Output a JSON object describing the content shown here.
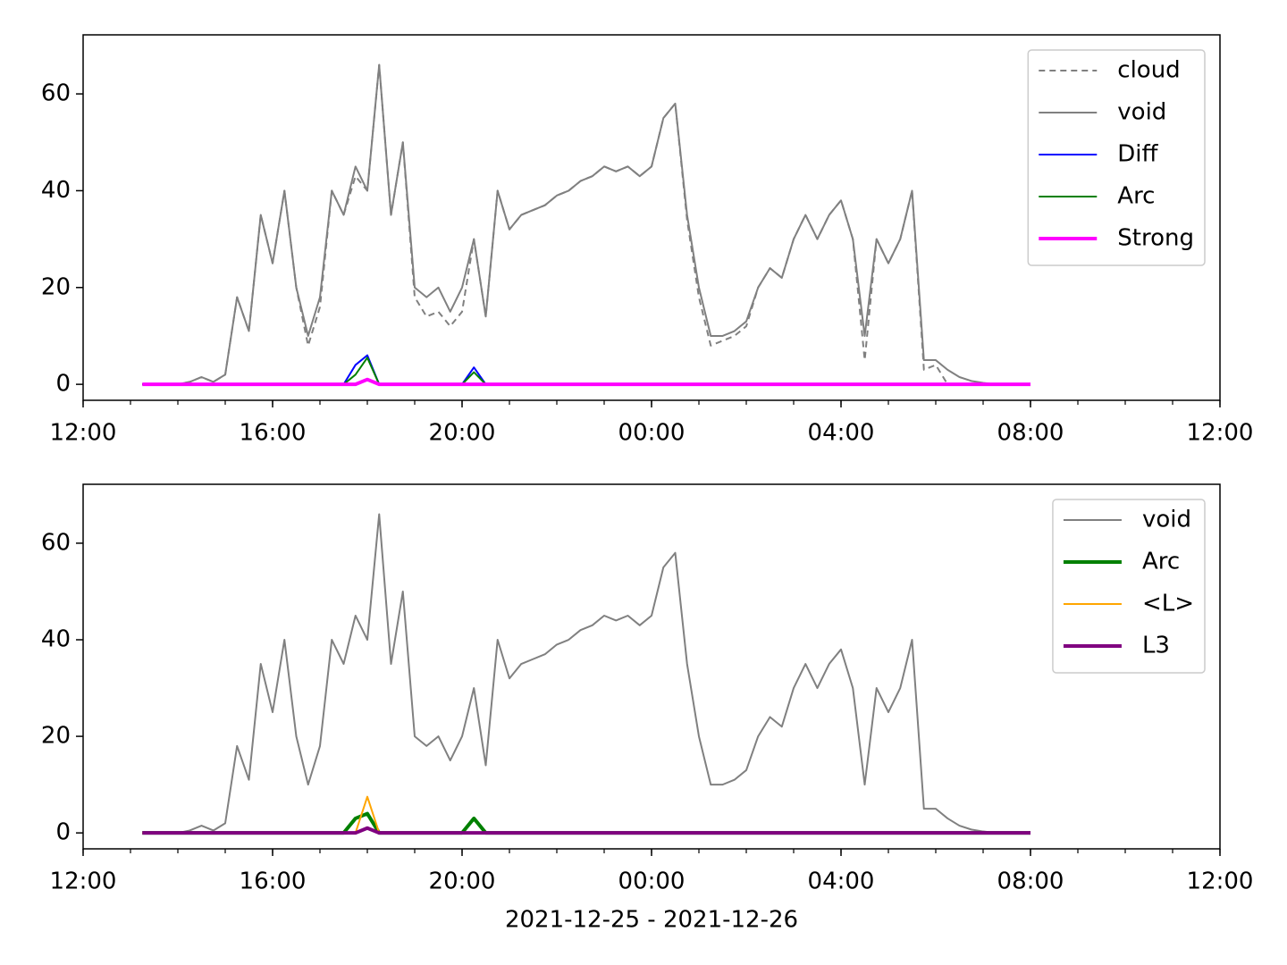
{
  "chart_data": [
    {
      "type": "line",
      "legend": "upper right",
      "xlim": [
        12,
        36
      ],
      "ylim": [
        -3.3,
        72.2
      ],
      "xticks": [
        {
          "value": 12,
          "label": "12:00"
        },
        {
          "value": 16,
          "label": "16:00"
        },
        {
          "value": 20,
          "label": "20:00"
        },
        {
          "value": 24,
          "label": "00:00"
        },
        {
          "value": 28,
          "label": "04:00"
        },
        {
          "value": 32,
          "label": "08:00"
        },
        {
          "value": 36,
          "label": "12:00"
        }
      ],
      "yticks": [
        0,
        20,
        40,
        60
      ],
      "x": [
        13.25,
        13.5,
        13.75,
        14,
        14.25,
        14.5,
        14.75,
        15,
        15.25,
        15.5,
        15.75,
        16,
        16.25,
        16.5,
        16.75,
        17,
        17.25,
        17.5,
        17.75,
        18,
        18.25,
        18.5,
        18.75,
        19,
        19.25,
        19.5,
        19.75,
        20,
        20.25,
        20.5,
        20.75,
        21,
        21.25,
        21.5,
        21.75,
        22,
        22.25,
        22.5,
        22.75,
        23,
        23.25,
        23.5,
        23.75,
        24,
        24.25,
        24.5,
        24.75,
        25,
        25.25,
        25.5,
        25.75,
        26,
        26.25,
        26.5,
        26.75,
        27,
        27.25,
        27.5,
        27.75,
        28,
        28.25,
        28.5,
        28.75,
        29,
        29.25,
        29.5,
        29.75,
        30,
        30.25,
        30.5,
        30.75,
        31,
        31.25,
        31.5,
        31.75,
        32
      ],
      "series": [
        {
          "name": "cloud",
          "color": "#808080",
          "style": "dashed",
          "values": [
            0,
            0,
            0,
            0,
            0.5,
            1.5,
            0.5,
            2,
            18,
            11,
            35,
            25,
            40,
            20,
            8,
            16,
            40,
            35,
            43,
            40,
            66,
            35,
            50,
            18,
            14,
            15,
            12,
            15,
            30,
            14,
            40,
            32,
            35,
            36,
            37,
            39,
            40,
            42,
            43,
            45,
            44,
            45,
            43,
            45,
            55,
            58,
            34,
            18,
            8,
            9,
            10,
            12,
            20,
            24,
            22,
            30,
            35,
            30,
            35,
            38,
            30,
            5,
            30,
            25,
            30,
            40,
            3,
            4,
            0,
            0,
            0,
            0,
            0,
            0,
            0,
            0
          ]
        },
        {
          "name": "void",
          "color": "#808080",
          "style": "solid",
          "values": [
            0,
            0,
            0,
            0,
            0.5,
            1.5,
            0.5,
            2,
            18,
            11,
            35,
            25,
            40,
            20,
            10,
            18,
            40,
            35,
            45,
            40,
            66,
            35,
            50,
            20,
            18,
            20,
            15,
            20,
            30,
            14,
            40,
            32,
            35,
            36,
            37,
            39,
            40,
            42,
            43,
            45,
            44,
            45,
            43,
            45,
            55,
            58,
            35,
            20,
            10,
            10,
            11,
            13,
            20,
            24,
            22,
            30,
            35,
            30,
            35,
            38,
            30,
            10,
            30,
            25,
            30,
            40,
            5,
            5,
            3,
            1.5,
            0.7,
            0.3,
            0,
            0,
            0,
            0
          ]
        },
        {
          "name": "Diff",
          "color": "#0000ff",
          "style": "solid",
          "values": [
            0,
            0,
            0,
            0,
            0,
            0,
            0,
            0,
            0,
            0,
            0,
            0,
            0,
            0,
            0,
            0,
            0,
            0,
            4,
            6,
            0,
            0,
            0,
            0,
            0,
            0,
            0,
            0,
            3.5,
            0,
            0,
            0,
            0,
            0,
            0,
            0,
            0,
            0,
            0,
            0,
            0,
            0,
            0,
            0,
            0,
            0,
            0,
            0,
            0,
            0,
            0,
            0,
            0,
            0,
            0,
            0,
            0,
            0,
            0,
            0,
            0,
            0,
            0,
            0,
            0,
            0,
            0,
            0,
            0,
            0,
            0,
            0,
            0,
            0,
            0,
            0
          ]
        },
        {
          "name": "Arc",
          "color": "#008000",
          "style": "solid",
          "values": [
            0,
            0,
            0,
            0,
            0,
            0,
            0,
            0,
            0,
            0,
            0,
            0,
            0,
            0,
            0,
            0,
            0,
            0,
            2,
            5.5,
            0,
            0,
            0,
            0,
            0,
            0,
            0,
            0,
            2.5,
            0,
            0,
            0,
            0,
            0,
            0,
            0,
            0,
            0,
            0,
            0,
            0,
            0,
            0,
            0,
            0,
            0,
            0,
            0,
            0,
            0,
            0,
            0,
            0,
            0,
            0,
            0,
            0,
            0,
            0,
            0,
            0,
            0,
            0,
            0,
            0,
            0,
            0,
            0,
            0,
            0,
            0,
            0,
            0,
            0,
            0,
            0
          ]
        },
        {
          "name": "Strong",
          "color": "#ff00ff",
          "style": "thick",
          "values": [
            0,
            0,
            0,
            0,
            0,
            0,
            0,
            0,
            0,
            0,
            0,
            0,
            0,
            0,
            0,
            0,
            0,
            0,
            0,
            1,
            0,
            0,
            0,
            0,
            0,
            0,
            0,
            0,
            0,
            0,
            0,
            0,
            0,
            0,
            0,
            0,
            0,
            0,
            0,
            0,
            0,
            0,
            0,
            0,
            0,
            0,
            0,
            0,
            0,
            0,
            0,
            0,
            0,
            0,
            0,
            0,
            0,
            0,
            0,
            0,
            0,
            0,
            0,
            0,
            0,
            0,
            0,
            0,
            0,
            0,
            0,
            0,
            0,
            0,
            0,
            0
          ]
        }
      ]
    },
    {
      "type": "line",
      "legend": "upper right",
      "xlabel": "2021-12-25 - 2021-12-26",
      "xlim": [
        12,
        36
      ],
      "ylim": [
        -3.3,
        72.2
      ],
      "xticks": [
        {
          "value": 12,
          "label": "12:00"
        },
        {
          "value": 16,
          "label": "16:00"
        },
        {
          "value": 20,
          "label": "20:00"
        },
        {
          "value": 24,
          "label": "00:00"
        },
        {
          "value": 28,
          "label": "04:00"
        },
        {
          "value": 32,
          "label": "08:00"
        },
        {
          "value": 36,
          "label": "12:00"
        }
      ],
      "yticks": [
        0,
        20,
        40,
        60
      ],
      "x": [
        13.25,
        13.5,
        13.75,
        14,
        14.25,
        14.5,
        14.75,
        15,
        15.25,
        15.5,
        15.75,
        16,
        16.25,
        16.5,
        16.75,
        17,
        17.25,
        17.5,
        17.75,
        18,
        18.25,
        18.5,
        18.75,
        19,
        19.25,
        19.5,
        19.75,
        20,
        20.25,
        20.5,
        20.75,
        21,
        21.25,
        21.5,
        21.75,
        22,
        22.25,
        22.5,
        22.75,
        23,
        23.25,
        23.5,
        23.75,
        24,
        24.25,
        24.5,
        24.75,
        25,
        25.25,
        25.5,
        25.75,
        26,
        26.25,
        26.5,
        26.75,
        27,
        27.25,
        27.5,
        27.75,
        28,
        28.25,
        28.5,
        28.75,
        29,
        29.25,
        29.5,
        29.75,
        30,
        30.25,
        30.5,
        30.75,
        31,
        31.25,
        31.5,
        31.75,
        32
      ],
      "series": [
        {
          "name": "void",
          "color": "#808080",
          "style": "solid",
          "values": [
            0,
            0,
            0,
            0,
            0.5,
            1.5,
            0.5,
            2,
            18,
            11,
            35,
            25,
            40,
            20,
            10,
            18,
            40,
            35,
            45,
            40,
            66,
            35,
            50,
            20,
            18,
            20,
            15,
            20,
            30,
            14,
            40,
            32,
            35,
            36,
            37,
            39,
            40,
            42,
            43,
            45,
            44,
            45,
            43,
            45,
            55,
            58,
            35,
            20,
            10,
            10,
            11,
            13,
            20,
            24,
            22,
            30,
            35,
            30,
            35,
            38,
            30,
            10,
            30,
            25,
            30,
            40,
            5,
            5,
            3,
            1.5,
            0.7,
            0.3,
            0,
            0,
            0,
            0
          ]
        },
        {
          "name": "Arc",
          "color": "#008000",
          "style": "thick",
          "values": [
            0,
            0,
            0,
            0,
            0,
            0,
            0,
            0,
            0,
            0,
            0,
            0,
            0,
            0,
            0,
            0,
            0,
            0,
            3,
            4,
            0,
            0,
            0,
            0,
            0,
            0,
            0,
            0,
            3,
            0,
            0,
            0,
            0,
            0,
            0,
            0,
            0,
            0,
            0,
            0,
            0,
            0,
            0,
            0,
            0,
            0,
            0,
            0,
            0,
            0,
            0,
            0,
            0,
            0,
            0,
            0,
            0,
            0,
            0,
            0,
            0,
            0,
            0,
            0,
            0,
            0,
            0,
            0,
            0,
            0,
            0,
            0,
            0,
            0,
            0,
            0
          ]
        },
        {
          "name": "<L>",
          "color": "#ffa500",
          "style": "solid",
          "values": [
            0,
            0,
            0,
            0,
            0,
            0,
            0,
            0,
            0,
            0,
            0,
            0,
            0,
            0,
            0,
            0,
            0,
            0,
            0,
            7.5,
            0,
            0,
            0,
            0,
            0,
            0,
            0,
            0,
            0,
            0,
            0,
            0,
            0,
            0,
            0,
            0,
            0,
            0,
            0,
            0,
            0,
            0,
            0,
            0,
            0,
            0,
            0,
            0,
            0,
            0,
            0,
            0,
            0,
            0,
            0,
            0,
            0,
            0,
            0,
            0,
            0,
            0,
            0,
            0,
            0,
            0,
            0,
            0,
            0,
            0,
            0,
            0,
            0,
            0,
            0,
            0
          ]
        },
        {
          "name": "L3",
          "color": "#800080",
          "style": "thick",
          "values": [
            0,
            0,
            0,
            0,
            0,
            0,
            0,
            0,
            0,
            0,
            0,
            0,
            0,
            0,
            0,
            0,
            0,
            0,
            0,
            1,
            0,
            0,
            0,
            0,
            0,
            0,
            0,
            0,
            0,
            0,
            0,
            0,
            0,
            0,
            0,
            0,
            0,
            0,
            0,
            0,
            0,
            0,
            0,
            0,
            0,
            0,
            0,
            0,
            0,
            0,
            0,
            0,
            0,
            0,
            0,
            0,
            0,
            0,
            0,
            0,
            0,
            0,
            0,
            0,
            0,
            0,
            0,
            0,
            0,
            0,
            0,
            0,
            0,
            0,
            0,
            0
          ]
        }
      ]
    }
  ]
}
